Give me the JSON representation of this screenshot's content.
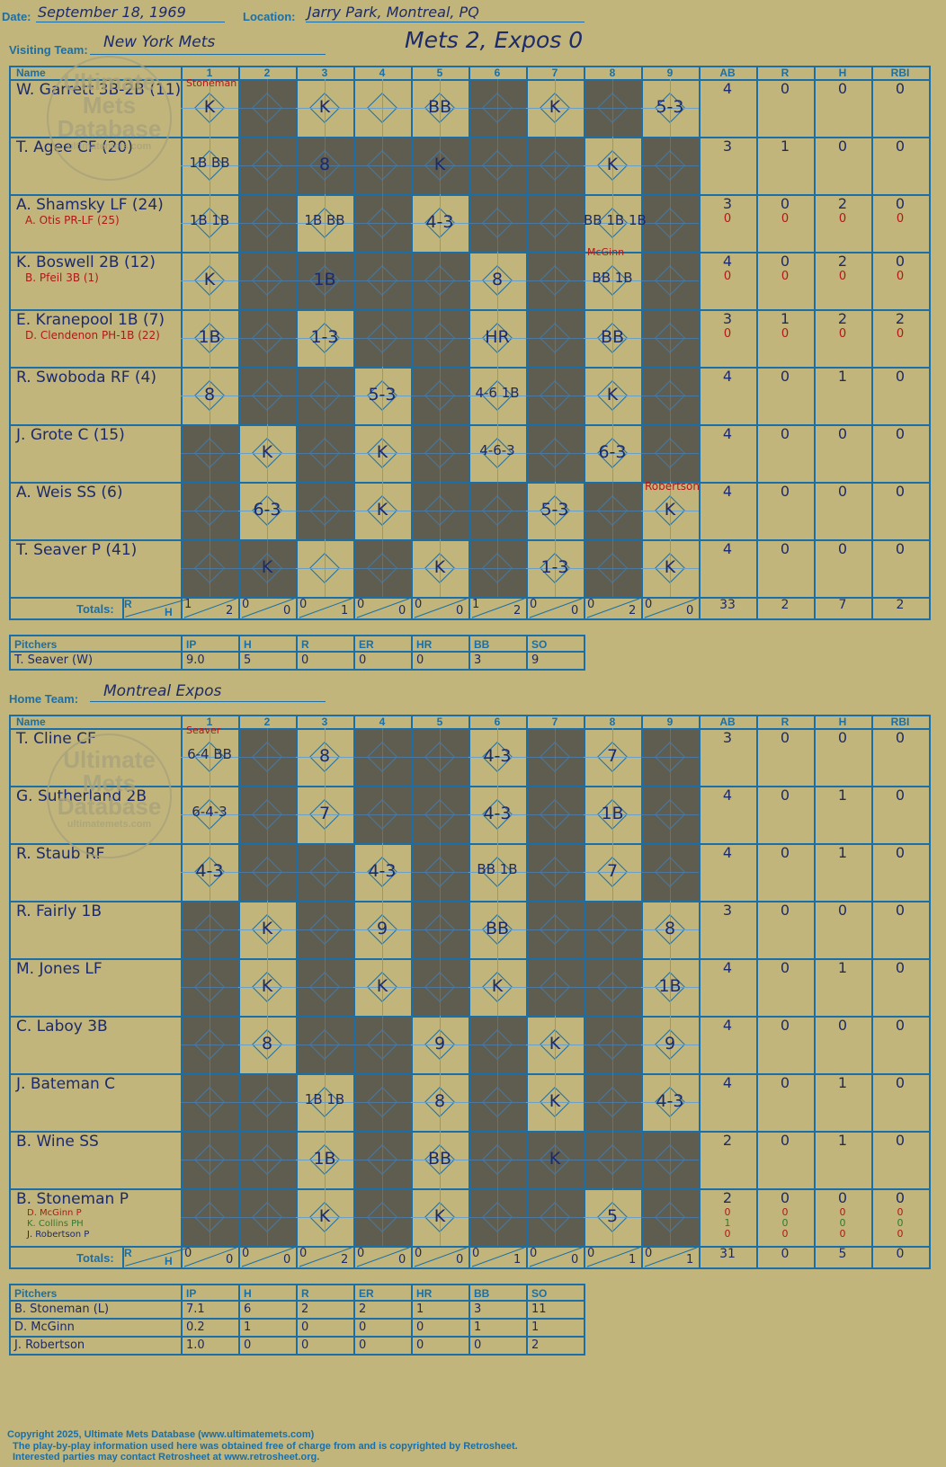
{
  "header": {
    "date_label": "Date:",
    "date": "September 18, 1969",
    "location_label": "Location:",
    "location": "Jarry Park, Montreal, PQ",
    "visiting_label": "Visiting Team:",
    "visiting_team": "New York Mets",
    "home_label": "Home Team:",
    "home_team": "Montreal Expos",
    "result": "Mets 2, Expos 0"
  },
  "columns": {
    "name": "Name",
    "innings": [
      "1",
      "2",
      "3",
      "4",
      "5",
      "6",
      "7",
      "8",
      "9"
    ],
    "ab": "AB",
    "r": "R",
    "h": "H",
    "rbi": "RBI"
  },
  "totals_label": "Totals:",
  "totals_r": "R",
  "totals_h": "H",
  "watermark": {
    "line1": "Ultimate",
    "line2": "Mets",
    "line3": "Database",
    "line4": "ultimatemets.com"
  },
  "visitors": {
    "players": [
      {
        "name": "W. Garrett 3B-2B (11)",
        "sub": "",
        "stats": [
          "4",
          "0",
          "0",
          "0"
        ],
        "sub_stats": []
      },
      {
        "name": "T. Agee CF (20)",
        "sub": "",
        "stats": [
          "3",
          "1",
          "0",
          "0"
        ],
        "sub_stats": []
      },
      {
        "name": "A. Shamsky LF (24)",
        "sub": "A. Otis PR-LF (25)",
        "stats": [
          "3",
          "0",
          "2",
          "0"
        ],
        "sub_stats": [
          "0",
          "0",
          "0",
          "0"
        ]
      },
      {
        "name": "K. Boswell 2B (12)",
        "sub": "B. Pfeil 3B (1)",
        "stats": [
          "4",
          "0",
          "2",
          "0"
        ],
        "sub_stats": [
          "0",
          "0",
          "0",
          "0"
        ]
      },
      {
        "name": "E. Kranepool 1B (7)",
        "sub": "D. Clendenon PH-1B (22)",
        "stats": [
          "3",
          "1",
          "2",
          "2"
        ],
        "sub_stats": [
          "0",
          "0",
          "0",
          "0"
        ]
      },
      {
        "name": "R. Swoboda RF (4)",
        "sub": "",
        "stats": [
          "4",
          "0",
          "1",
          "0"
        ],
        "sub_stats": []
      },
      {
        "name": "J. Grote C (15)",
        "sub": "",
        "stats": [
          "4",
          "0",
          "0",
          "0"
        ],
        "sub_stats": []
      },
      {
        "name": "A. Weis SS (6)",
        "sub": "",
        "stats": [
          "4",
          "0",
          "0",
          "0"
        ],
        "sub_stats": []
      },
      {
        "name": "T. Seaver P (41)",
        "sub": "",
        "stats": [
          "4",
          "0",
          "0",
          "0"
        ],
        "sub_stats": []
      }
    ],
    "totals_inning": [
      [
        "1",
        "2"
      ],
      [
        "0",
        "0"
      ],
      [
        "0",
        "1"
      ],
      [
        "0",
        "0"
      ],
      [
        "0",
        "0"
      ],
      [
        "1",
        "2"
      ],
      [
        "0",
        "0"
      ],
      [
        "0",
        "2"
      ],
      [
        "0",
        "0"
      ]
    ],
    "totals_stats": [
      "33",
      "2",
      "7",
      "2"
    ],
    "pitching_header": [
      "Pitchers",
      "IP",
      "H",
      "R",
      "ER",
      "HR",
      "BB",
      "SO"
    ],
    "pitchers": [
      [
        "T. Seaver (W)",
        "9.0",
        "5",
        "0",
        "0",
        "0",
        "3",
        "9"
      ]
    ],
    "notes": {
      "stoneman": "Stoneman",
      "mcginn": "McGinn",
      "robertson": "Robertson"
    }
  },
  "home": {
    "players": [
      {
        "name": "T. Cline CF",
        "stats": [
          "3",
          "0",
          "0",
          "0"
        ]
      },
      {
        "name": "G. Sutherland 2B",
        "stats": [
          "4",
          "0",
          "1",
          "0"
        ]
      },
      {
        "name": "R. Staub RF",
        "stats": [
          "4",
          "0",
          "1",
          "0"
        ]
      },
      {
        "name": "R. Fairly 1B",
        "stats": [
          "3",
          "0",
          "0",
          "0"
        ]
      },
      {
        "name": "M. Jones LF",
        "stats": [
          "4",
          "0",
          "1",
          "0"
        ]
      },
      {
        "name": "C. Laboy 3B",
        "stats": [
          "4",
          "0",
          "0",
          "0"
        ]
      },
      {
        "name": "J. Bateman C",
        "stats": [
          "4",
          "0",
          "1",
          "0"
        ]
      },
      {
        "name": "B. Wine SS",
        "stats": [
          "2",
          "0",
          "1",
          "0"
        ]
      },
      {
        "name": "B. Stoneman P",
        "stats": [
          "2",
          "0",
          "0",
          "0"
        ]
      }
    ],
    "last_subs": [
      "D. McGinn P",
      "K. Collins PH",
      "J. Robertson P"
    ],
    "last_sub_stats": [
      [
        "0",
        "0",
        "0",
        "0"
      ],
      [
        "1",
        "0",
        "0",
        "0"
      ],
      [
        "0",
        "0",
        "0",
        "0"
      ]
    ],
    "totals_inning": [
      [
        "0",
        "0"
      ],
      [
        "0",
        "0"
      ],
      [
        "0",
        "2"
      ],
      [
        "0",
        "0"
      ],
      [
        "0",
        "0"
      ],
      [
        "0",
        "1"
      ],
      [
        "0",
        "0"
      ],
      [
        "0",
        "1"
      ],
      [
        "0",
        "1"
      ]
    ],
    "totals_stats": [
      "31",
      "0",
      "5",
      "0"
    ],
    "pitching_header": [
      "Pitchers",
      "IP",
      "H",
      "R",
      "ER",
      "HR",
      "BB",
      "SO"
    ],
    "pitchers": [
      [
        "B. Stoneman (L)",
        "7.1",
        "6",
        "2",
        "2",
        "1",
        "3",
        "11"
      ],
      [
        "D. McGinn",
        "0.2",
        "1",
        "0",
        "0",
        "0",
        "1",
        "1"
      ],
      [
        "J. Robertson",
        "1.0",
        "0",
        "0",
        "0",
        "0",
        "0",
        "2"
      ]
    ],
    "notes": {
      "seaver": "Seaver"
    }
  },
  "footer": {
    "line1": "Copyright 2025, Ultimate Mets Database (www.ultimatemets.com)",
    "line2": "The play-by-play information used here was obtained free of charge from and is copyrighted by Retrosheet.",
    "line3": "Interested parties may contact Retrosheet at www.retrosheet.org."
  },
  "plays": {
    "visitors": [
      [
        "K",
        "",
        "K",
        "",
        "BB",
        "",
        "K",
        "",
        "5-3"
      ],
      [
        "1B BB",
        "",
        "8",
        "",
        "K",
        "",
        "",
        "K",
        ""
      ],
      [
        "1B 1B",
        "",
        "1B BB",
        "",
        "4-3",
        "",
        "",
        "BB 1B 1B",
        ""
      ],
      [
        "K",
        "",
        "1B",
        "",
        "",
        "8",
        "",
        "BB 1B",
        ""
      ],
      [
        "1B",
        "",
        "1-3",
        "",
        "",
        "HR",
        "",
        "BB",
        ""
      ],
      [
        "8",
        "",
        "",
        "5-3",
        "",
        "4-6 1B",
        "",
        "K",
        ""
      ],
      [
        "",
        "K",
        "",
        "K",
        "",
        "4-6-3",
        "",
        "6-3",
        ""
      ],
      [
        "",
        "6-3",
        "",
        "K",
        "",
        "",
        "5-3",
        "",
        "K"
      ],
      [
        "",
        "K",
        "",
        "",
        "K",
        "",
        "1-3",
        "",
        "K"
      ]
    ],
    "home": [
      [
        "6-4 BB",
        "",
        "8",
        "",
        "",
        "4-3",
        "",
        "7",
        ""
      ],
      [
        "6-4-3",
        "",
        "7",
        "",
        "",
        "4-3",
        "",
        "1B",
        ""
      ],
      [
        "4-3",
        "",
        "",
        "4-3",
        "",
        "BB 1B",
        "",
        "7",
        ""
      ],
      [
        "",
        "K",
        "",
        "9",
        "",
        "BB",
        "",
        "",
        "8"
      ],
      [
        "",
        "K",
        "",
        "K",
        "",
        "K",
        "",
        "",
        "1B"
      ],
      [
        "",
        "8",
        "",
        "",
        "9",
        "",
        "K",
        "",
        "9"
      ],
      [
        "",
        "",
        "1B 1B",
        "",
        "8",
        "",
        "K",
        "",
        "4-3"
      ],
      [
        "",
        "",
        "1B",
        "",
        "BB",
        "",
        "K",
        "",
        ""
      ],
      [
        "",
        "",
        "K",
        "",
        "K",
        "",
        "",
        "5",
        ""
      ]
    ]
  }
}
